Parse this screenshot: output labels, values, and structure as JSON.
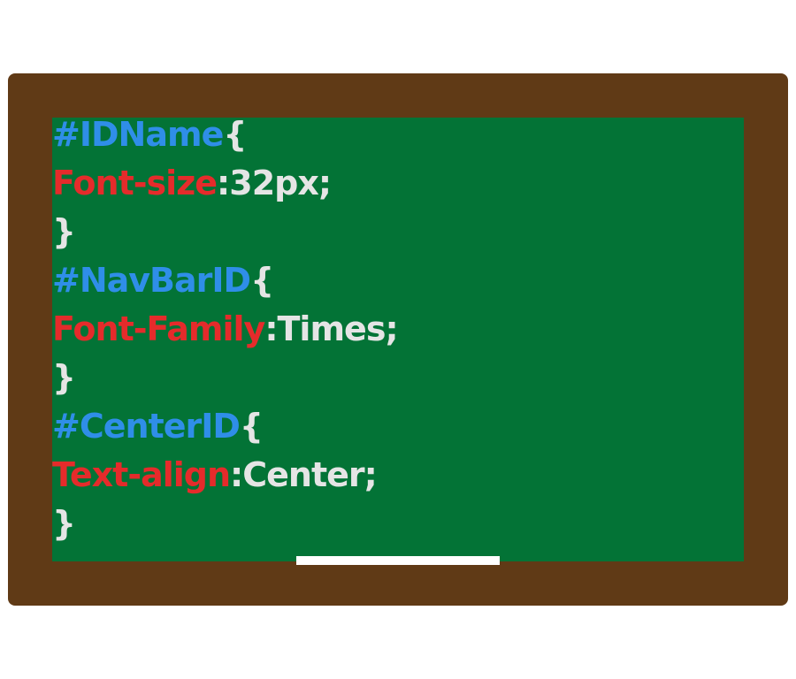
{
  "colors": {
    "frame": "#603a16",
    "board": "#037336",
    "selector": "#2f8ee8",
    "property": "#e52b2b",
    "value": "#e5e5e5",
    "chalk": "#ffffff"
  },
  "rules": [
    {
      "selector": "#IDName",
      "open": "{",
      "property": "Font-size",
      "colon": ":",
      "value": "32px;",
      "close": "}"
    },
    {
      "selector": "#NavBarID",
      "open": "{",
      "property": "Font-Family",
      "colon": ":",
      "value": "Times;",
      "close": "}"
    },
    {
      "selector": "#CenterID",
      "open": "{",
      "property": "Text-align",
      "colon": ":",
      "value": "Center;",
      "close": "}"
    }
  ]
}
